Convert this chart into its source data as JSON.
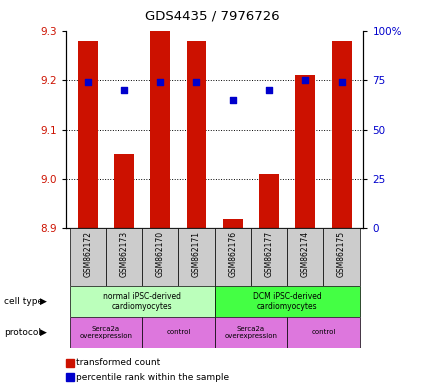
{
  "title": "GDS4435 / 7976726",
  "samples": [
    "GSM862172",
    "GSM862173",
    "GSM862170",
    "GSM862171",
    "GSM862176",
    "GSM862177",
    "GSM862174",
    "GSM862175"
  ],
  "transformed_counts": [
    9.28,
    9.05,
    9.3,
    9.28,
    8.92,
    9.01,
    9.21,
    9.28
  ],
  "percentile_ranks": [
    74,
    70,
    74,
    74,
    65,
    70,
    75,
    74
  ],
  "ylim_left": [
    8.9,
    9.3
  ],
  "ylim_right": [
    0,
    100
  ],
  "yticks_left": [
    8.9,
    9.0,
    9.1,
    9.2,
    9.3
  ],
  "yticks_right": [
    0,
    25,
    50,
    75,
    100
  ],
  "ytick_labels_right": [
    "0",
    "25",
    "50",
    "75",
    "100%"
  ],
  "bar_color": "#cc1100",
  "dot_color": "#0000cc",
  "bar_width": 0.55,
  "cell_type_groups": [
    {
      "label": "normal iPSC-derived\ncardiomyocytes",
      "start": 0,
      "end": 3,
      "color": "#bbffbb"
    },
    {
      "label": "DCM iPSC-derived\ncardiomyocytes",
      "start": 4,
      "end": 7,
      "color": "#44ff44"
    }
  ],
  "protocol_groups": [
    {
      "label": "Serca2a\noverexpression",
      "start": 0,
      "end": 1,
      "color": "#dd77dd"
    },
    {
      "label": "control",
      "start": 2,
      "end": 3,
      "color": "#dd77dd"
    },
    {
      "label": "Serca2a\noverexpression",
      "start": 4,
      "end": 5,
      "color": "#dd77dd"
    },
    {
      "label": "control",
      "start": 6,
      "end": 7,
      "color": "#dd77dd"
    }
  ],
  "cell_type_label": "cell type",
  "protocol_label": "protocol",
  "legend_bar_label": "transformed count",
  "legend_dot_label": "percentile rank within the sample",
  "bg_color": "#ffffff",
  "left_tick_color": "#cc1100",
  "right_tick_color": "#0000cc",
  "sample_box_color": "#cccccc",
  "arrow_char": "▶"
}
